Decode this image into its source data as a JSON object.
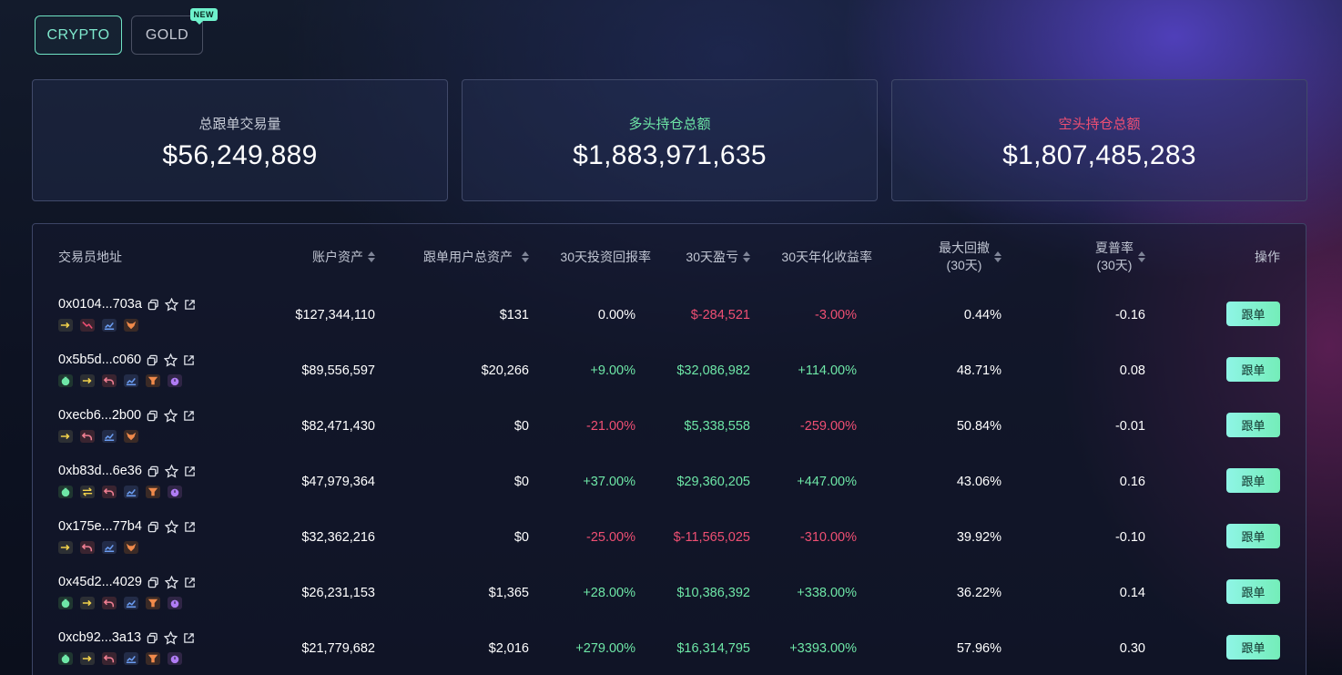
{
  "tabs": [
    {
      "label": "CRYPTO",
      "active": true
    },
    {
      "label": "GOLD",
      "active": false,
      "badge": "NEW"
    }
  ],
  "stats": [
    {
      "label": "总跟单交易量",
      "value": "$56,249,889",
      "tone": "grey"
    },
    {
      "label": "多头持仓总额",
      "value": "$1,883,971,635",
      "tone": "green"
    },
    {
      "label": "空头持仓总额",
      "value": "$1,807,485,283",
      "tone": "red"
    }
  ],
  "table": {
    "headers": {
      "address": "交易员地址",
      "assets": "账户资产",
      "follower_assets": "跟单用户总资产",
      "roi30": "30天投资回报率",
      "pnl30": "30天盈亏",
      "apr30": "30天年化收益率",
      "drawdown_line1": "最大回撤",
      "drawdown_line2": "(30天)",
      "sharpe_line1": "夏普率",
      "sharpe_line2": "(30天)",
      "action": "操作"
    },
    "follow_label": "跟单",
    "rows": [
      {
        "address": "0x0104...703a",
        "tags": [
          "arrow-right",
          "trend-down",
          "chart",
          "fox"
        ],
        "assets": "$127,344,110",
        "follower_assets": "$131",
        "roi": "0.00%",
        "roi_tone": "neutral",
        "pnl": "$-284,521",
        "pnl_tone": "neg",
        "apr": "-3.00%",
        "apr_tone": "neg",
        "drawdown": "0.44%",
        "sharpe": "-0.16"
      },
      {
        "address": "0x5b5d...c060",
        "tags": [
          "money-bag",
          "arrow-right",
          "undo",
          "chart",
          "funnel",
          "timer"
        ],
        "assets": "$89,556,597",
        "follower_assets": "$20,266",
        "roi": "+9.00%",
        "roi_tone": "pos",
        "pnl": "$32,086,982",
        "pnl_tone": "pos",
        "apr": "+114.00%",
        "apr_tone": "pos",
        "drawdown": "48.71%",
        "sharpe": "0.08"
      },
      {
        "address": "0xecb6...2b00",
        "tags": [
          "arrow-right",
          "undo",
          "chart",
          "fox"
        ],
        "assets": "$82,471,430",
        "follower_assets": "$0",
        "roi": "-21.00%",
        "roi_tone": "neg",
        "pnl": "$5,338,558",
        "pnl_tone": "pos",
        "apr": "-259.00%",
        "apr_tone": "neg",
        "drawdown": "50.84%",
        "sharpe": "-0.01"
      },
      {
        "address": "0xb83d...6e36",
        "tags": [
          "money-bag",
          "swap",
          "undo",
          "chart",
          "funnel",
          "timer"
        ],
        "assets": "$47,979,364",
        "follower_assets": "$0",
        "roi": "+37.00%",
        "roi_tone": "pos",
        "pnl": "$29,360,205",
        "pnl_tone": "pos",
        "apr": "+447.00%",
        "apr_tone": "pos",
        "drawdown": "43.06%",
        "sharpe": "0.16"
      },
      {
        "address": "0x175e...77b4",
        "tags": [
          "arrow-right",
          "undo",
          "chart",
          "fox"
        ],
        "assets": "$32,362,216",
        "follower_assets": "$0",
        "roi": "-25.00%",
        "roi_tone": "neg",
        "pnl": "$-11,565,025",
        "pnl_tone": "neg",
        "apr": "-310.00%",
        "apr_tone": "neg",
        "drawdown": "39.92%",
        "sharpe": "-0.10"
      },
      {
        "address": "0x45d2...4029",
        "tags": [
          "money-bag",
          "arrow-right",
          "undo",
          "chart",
          "funnel",
          "timer"
        ],
        "assets": "$26,231,153",
        "follower_assets": "$1,365",
        "roi": "+28.00%",
        "roi_tone": "pos",
        "pnl": "$10,386,392",
        "pnl_tone": "pos",
        "apr": "+338.00%",
        "apr_tone": "pos",
        "drawdown": "36.22%",
        "sharpe": "0.14"
      },
      {
        "address": "0xcb92...3a13",
        "tags": [
          "money-bag",
          "arrow-right",
          "undo",
          "chart",
          "funnel",
          "timer"
        ],
        "assets": "$21,779,682",
        "follower_assets": "$2,016",
        "roi": "+279.00%",
        "roi_tone": "pos",
        "pnl": "$16,314,795",
        "pnl_tone": "pos",
        "apr": "+3393.00%",
        "apr_tone": "pos",
        "drawdown": "57.96%",
        "sharpe": "0.30"
      }
    ]
  },
  "colors": {
    "accent": "#6fe3c4",
    "positive": "#6ee7a7",
    "negative": "#ef4f73"
  }
}
